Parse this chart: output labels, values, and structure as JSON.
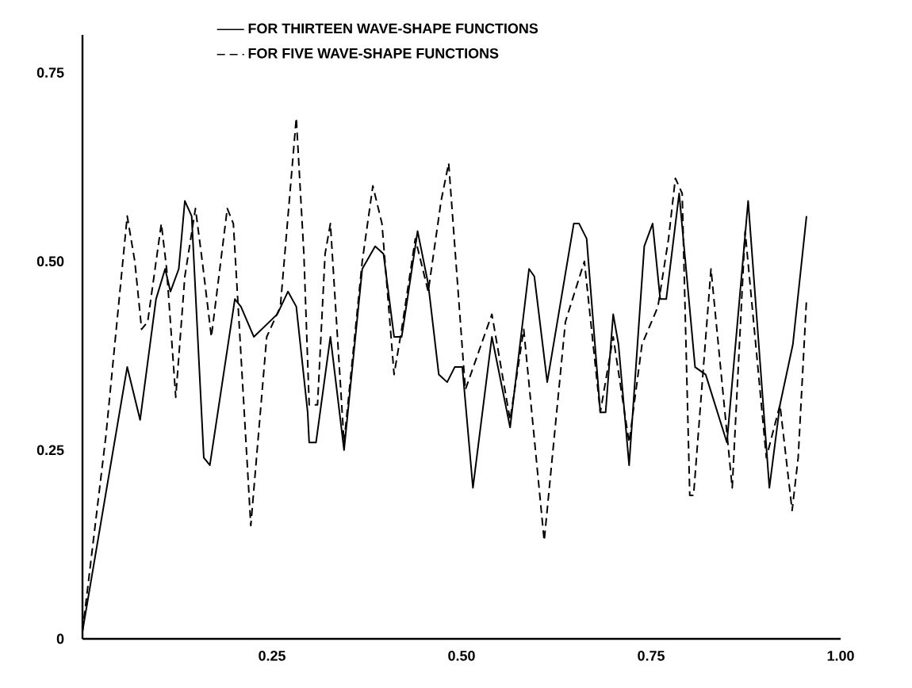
{
  "chart_data": {
    "type": "line",
    "xlim": [
      0,
      1.0
    ],
    "ylim": [
      0,
      0.8
    ],
    "xticks": [
      0.25,
      {
        "value": 0.5,
        "label": "0.50"
      },
      0.75,
      {
        "value": 1.0,
        "label": "1.00"
      }
    ],
    "yticks": [
      0,
      0.25,
      {
        "value": 0.5,
        "label": "0.50"
      },
      0.75
    ],
    "grid": false,
    "legend": "top",
    "marker": "none",
    "series": [
      {
        "name": "FOR THIRTEEN WAVE-SHAPE FUNCTIONS",
        "color": "#000000",
        "line_style": "solid",
        "x": [
          0,
          0.059,
          0.076,
          0.097,
          0.109,
          0.116,
          0.127,
          0.135,
          0.144,
          0.16,
          0.168,
          0.201,
          0.209,
          0.226,
          0.257,
          0.271,
          0.282,
          0.297,
          0.299,
          0.308,
          0.327,
          0.345,
          0.369,
          0.386,
          0.397,
          0.411,
          0.421,
          0.442,
          0.456,
          0.47,
          0.481,
          0.491,
          0.501,
          0.515,
          0.54,
          0.564,
          0.589,
          0.596,
          0.613,
          0.648,
          0.655,
          0.665,
          0.683,
          0.69,
          0.7,
          0.707,
          0.721,
          0.741,
          0.752,
          0.762,
          0.77,
          0.787,
          0.808,
          0.822,
          0.85,
          0.878,
          0.906,
          0.92,
          0.937,
          0.955
        ],
        "values": [
          0.01,
          0.36,
          0.29,
          0.45,
          0.49,
          0.46,
          0.49,
          0.58,
          0.56,
          0.24,
          0.23,
          0.45,
          0.44,
          0.4,
          0.43,
          0.46,
          0.44,
          0.3,
          0.26,
          0.26,
          0.4,
          0.25,
          0.49,
          0.52,
          0.51,
          0.4,
          0.4,
          0.54,
          0.47,
          0.35,
          0.34,
          0.36,
          0.36,
          0.2,
          0.4,
          0.28,
          0.49,
          0.48,
          0.34,
          0.55,
          0.55,
          0.53,
          0.3,
          0.3,
          0.43,
          0.39,
          0.23,
          0.52,
          0.55,
          0.45,
          0.45,
          0.59,
          0.36,
          0.35,
          0.26,
          0.58,
          0.2,
          0.31,
          0.39,
          0.56
        ]
      },
      {
        "name": "FOR FIVE WAVE-SHAPE FUNCTIONS",
        "color": "#000000",
        "line_style": "dashed",
        "x": [
          0,
          0.031,
          0.059,
          0.069,
          0.078,
          0.086,
          0.104,
          0.111,
          0.123,
          0.135,
          0.149,
          0.158,
          0.17,
          0.191,
          0.199,
          0.222,
          0.243,
          0.261,
          0.282,
          0.292,
          0.299,
          0.31,
          0.32,
          0.327,
          0.345,
          0.369,
          0.383,
          0.395,
          0.411,
          0.421,
          0.439,
          0.456,
          0.473,
          0.483,
          0.505,
          0.54,
          0.564,
          0.582,
          0.609,
          0.637,
          0.662,
          0.683,
          0.7,
          0.721,
          0.738,
          0.759,
          0.773,
          0.782,
          0.791,
          0.801,
          0.806,
          0.829,
          0.857,
          0.874,
          0.902,
          0.92,
          0.936,
          0.944,
          0.955
        ],
        "values": [
          0.01,
          0.27,
          0.56,
          0.5,
          0.41,
          0.42,
          0.55,
          0.49,
          0.32,
          0.48,
          0.57,
          0.5,
          0.4,
          0.57,
          0.55,
          0.15,
          0.4,
          0.44,
          0.69,
          0.51,
          0.31,
          0.31,
          0.51,
          0.55,
          0.26,
          0.5,
          0.6,
          0.55,
          0.35,
          0.41,
          0.53,
          0.46,
          0.58,
          0.63,
          0.33,
          0.43,
          0.29,
          0.41,
          0.13,
          0.42,
          0.5,
          0.3,
          0.4,
          0.26,
          0.39,
          0.44,
          0.53,
          0.61,
          0.59,
          0.19,
          0.19,
          0.49,
          0.2,
          0.54,
          0.24,
          0.31,
          0.17,
          0.24,
          0.45
        ]
      }
    ]
  }
}
